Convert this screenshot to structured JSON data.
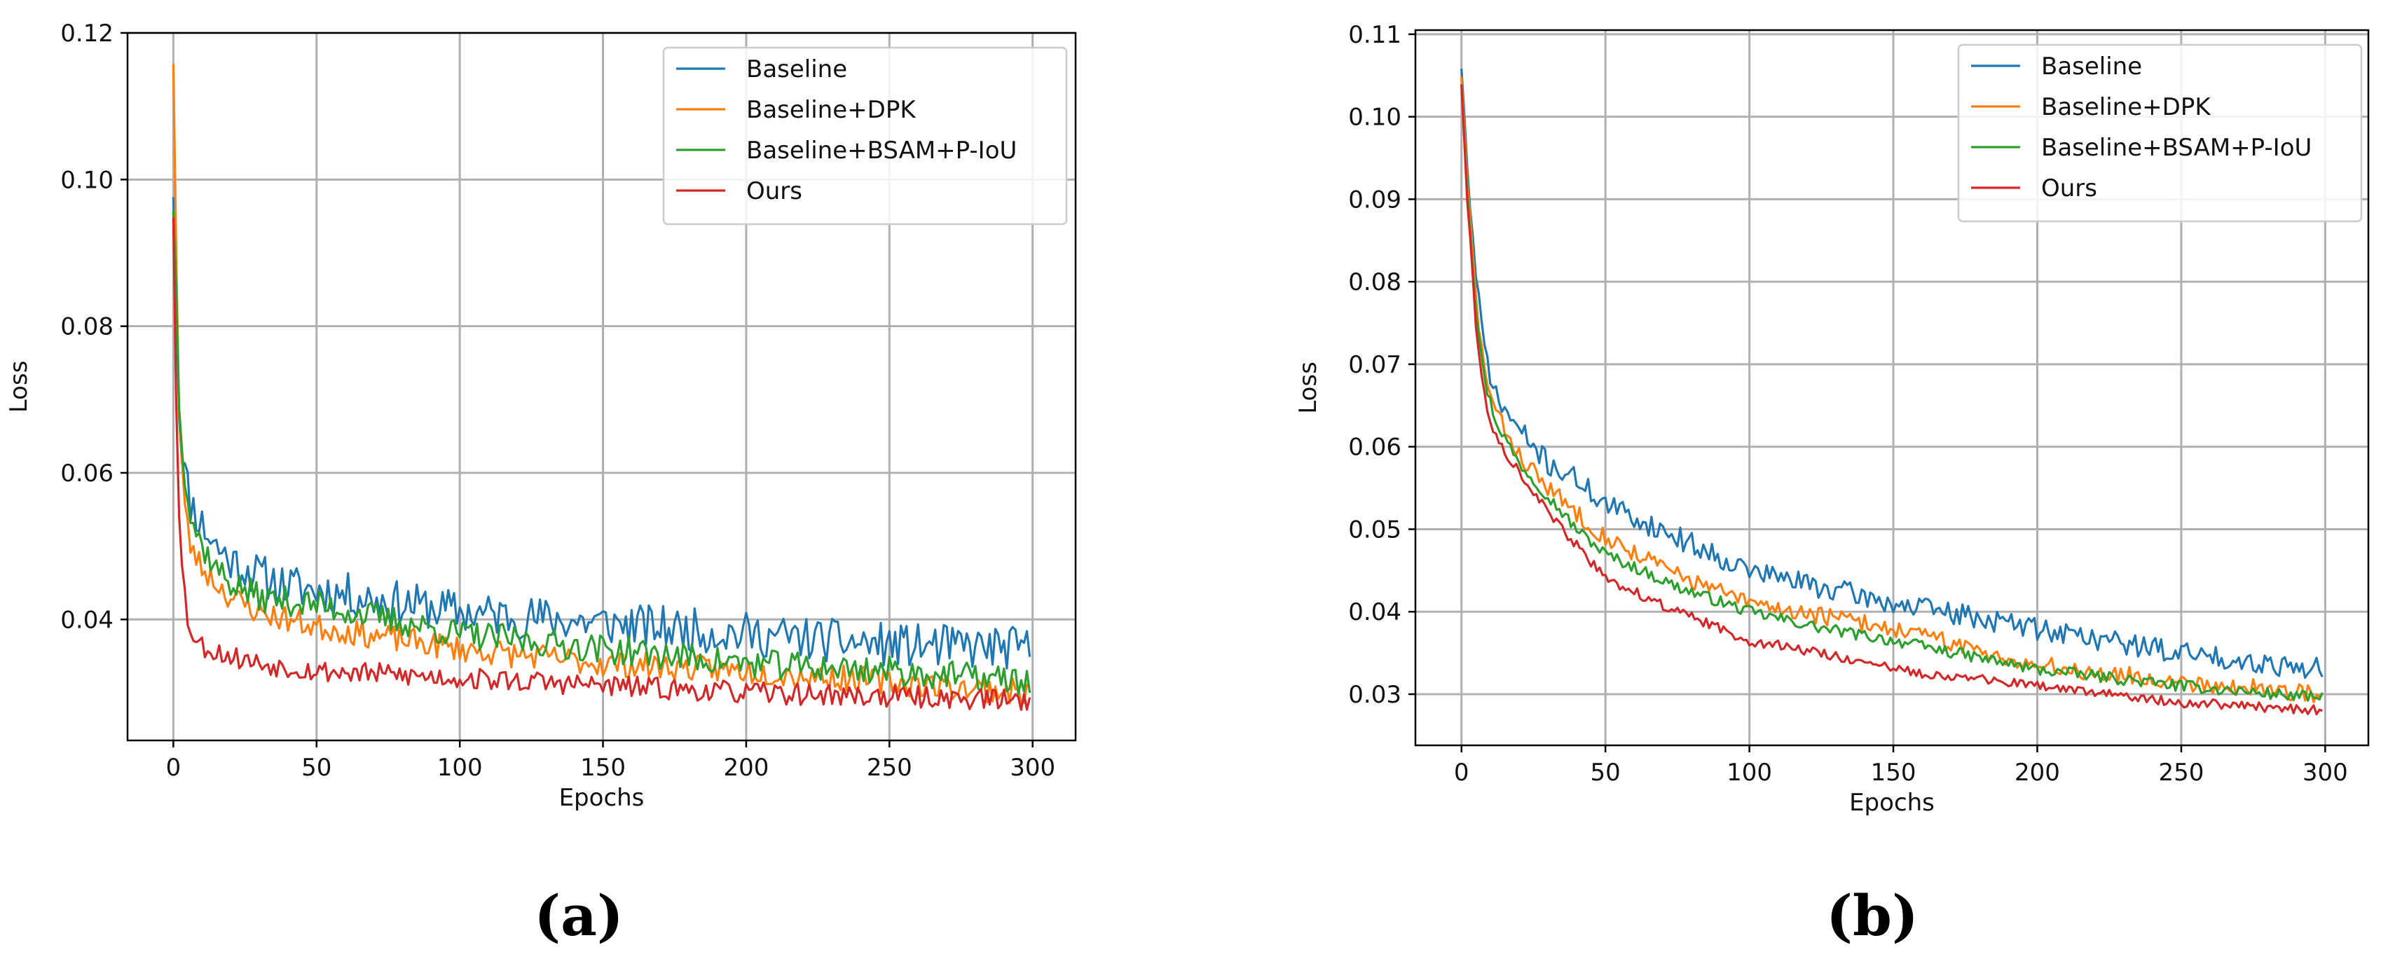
{
  "figure": {
    "panel_labels": [
      "(a)",
      "(b)"
    ]
  },
  "chart_data": [
    {
      "type": "line",
      "title": "",
      "xlabel": "Epochs",
      "ylabel": "Loss",
      "xlim": [
        -16,
        315
      ],
      "ylim": [
        0.0235,
        0.12
      ],
      "xticks": [
        0,
        50,
        100,
        150,
        200,
        250,
        300
      ],
      "yticks": [
        0.04,
        0.06,
        0.08,
        0.1,
        0.12
      ],
      "ytick_labels": [
        "0.04",
        "0.06",
        "0.08",
        "0.10",
        "0.12"
      ],
      "grid": true,
      "legend_position": "top-right",
      "series": [
        {
          "name": "Baseline",
          "color": "#1f77b4",
          "x": [
            0,
            1,
            2,
            4,
            6,
            10,
            15,
            20,
            30,
            40,
            50,
            75,
            100,
            150,
            200,
            250,
            299
          ],
          "y": [
            0.098,
            0.085,
            0.068,
            0.06,
            0.056,
            0.053,
            0.05,
            0.048,
            0.046,
            0.0445,
            0.044,
            0.0425,
            0.041,
            0.0395,
            0.038,
            0.0365,
            0.036
          ],
          "noise": 0.003,
          "seed": 11
        },
        {
          "name": "Baseline+DPK",
          "color": "#ff7f0e",
          "x": [
            0,
            1,
            2,
            4,
            6,
            10,
            15,
            20,
            30,
            40,
            50,
            75,
            100,
            150,
            200,
            250,
            299
          ],
          "y": [
            0.116,
            0.09,
            0.068,
            0.055,
            0.05,
            0.047,
            0.045,
            0.043,
            0.041,
            0.04,
            0.039,
            0.0375,
            0.036,
            0.034,
            0.033,
            0.0315,
            0.03
          ],
          "noise": 0.0018,
          "seed": 23
        },
        {
          "name": "Baseline+BSAM+P-IoU",
          "color": "#2ca02c",
          "x": [
            0,
            1,
            2,
            4,
            6,
            10,
            15,
            20,
            30,
            40,
            50,
            75,
            100,
            150,
            200,
            250,
            299
          ],
          "y": [
            0.096,
            0.085,
            0.07,
            0.06,
            0.054,
            0.05,
            0.047,
            0.045,
            0.043,
            0.0425,
            0.042,
            0.04,
            0.038,
            0.036,
            0.034,
            0.033,
            0.0315
          ],
          "noise": 0.002,
          "seed": 37
        },
        {
          "name": "Ours",
          "color": "#d62728",
          "x": [
            0,
            1,
            2,
            3,
            5,
            8,
            12,
            20,
            30,
            40,
            50,
            75,
            100,
            150,
            200,
            250,
            299
          ],
          "y": [
            0.095,
            0.07,
            0.055,
            0.047,
            0.04,
            0.037,
            0.036,
            0.035,
            0.034,
            0.0335,
            0.033,
            0.0325,
            0.032,
            0.031,
            0.03,
            0.0295,
            0.029
          ],
          "noise": 0.0015,
          "seed": 53
        }
      ]
    },
    {
      "type": "line",
      "title": "",
      "xlabel": "Epochs",
      "ylabel": "Loss",
      "xlim": [
        -16,
        315
      ],
      "ylim": [
        0.0238,
        0.1105
      ],
      "xticks": [
        0,
        50,
        100,
        150,
        200,
        250,
        300
      ],
      "yticks": [
        0.03,
        0.04,
        0.05,
        0.06,
        0.07,
        0.08,
        0.09,
        0.1,
        0.11
      ],
      "ytick_labels": [
        "0.03",
        "0.04",
        "0.05",
        "0.06",
        "0.07",
        "0.08",
        "0.09",
        "0.10",
        "0.11"
      ],
      "grid": true,
      "legend_position": "top-right",
      "series": [
        {
          "name": "Baseline",
          "color": "#1f77b4",
          "x": [
            0,
            2,
            5,
            8,
            12,
            20,
            30,
            40,
            50,
            75,
            100,
            125,
            150,
            200,
            250,
            299
          ],
          "y": [
            0.106,
            0.094,
            0.08,
            0.072,
            0.066,
            0.062,
            0.058,
            0.056,
            0.053,
            0.049,
            0.045,
            0.043,
            0.041,
            0.038,
            0.035,
            0.033
          ],
          "noise": 0.0014,
          "seed": 71
        },
        {
          "name": "Baseline+DPK",
          "color": "#ff7f0e",
          "x": [
            0,
            2,
            5,
            8,
            12,
            20,
            30,
            40,
            50,
            75,
            100,
            125,
            150,
            200,
            250,
            299
          ],
          "y": [
            0.105,
            0.092,
            0.078,
            0.069,
            0.064,
            0.059,
            0.055,
            0.052,
            0.049,
            0.0445,
            0.041,
            0.0395,
            0.038,
            0.0335,
            0.0315,
            0.03
          ],
          "noise": 0.0011,
          "seed": 83
        },
        {
          "name": "Baseline+BSAM+P-IoU",
          "color": "#2ca02c",
          "x": [
            0,
            2,
            5,
            8,
            12,
            20,
            30,
            40,
            50,
            75,
            100,
            125,
            150,
            200,
            250,
            299
          ],
          "y": [
            0.104,
            0.091,
            0.077,
            0.068,
            0.063,
            0.058,
            0.054,
            0.05,
            0.047,
            0.043,
            0.04,
            0.038,
            0.0365,
            0.033,
            0.031,
            0.0295
          ],
          "noise": 0.0007,
          "seed": 97
        },
        {
          "name": "Ours",
          "color": "#d62728",
          "x": [
            0,
            2,
            5,
            8,
            12,
            20,
            30,
            40,
            50,
            75,
            100,
            125,
            150,
            200,
            250,
            299
          ],
          "y": [
            0.104,
            0.09,
            0.075,
            0.066,
            0.061,
            0.057,
            0.052,
            0.048,
            0.044,
            0.04,
            0.0365,
            0.035,
            0.033,
            0.031,
            0.029,
            0.028
          ],
          "noise": 0.0006,
          "seed": 113
        }
      ]
    }
  ]
}
